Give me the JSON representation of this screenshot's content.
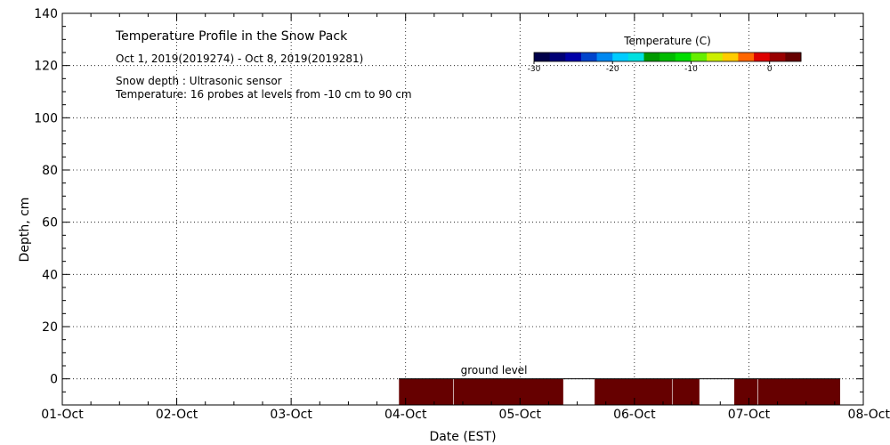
{
  "chart_data": {
    "type": "heatmap",
    "title": "Temperature Profile in the Snow Pack",
    "subtitle": "Oct  1, 2019(2019274) - Oct  8, 2019(2019281)",
    "annotations": [
      "Snow depth : Ultrasonic sensor",
      "Temperature: 16 probes at levels from -10 cm to 90 cm"
    ],
    "ground_label": "ground level",
    "xlabel": "Date (EST)",
    "ylabel": "Depth, cm",
    "x_ticks": [
      "01-Oct",
      "02-Oct",
      "03-Oct",
      "04-Oct",
      "05-Oct",
      "06-Oct",
      "07-Oct",
      "08-Oct"
    ],
    "xlim": [
      0,
      7
    ],
    "ylim": [
      -10,
      140
    ],
    "y_ticks": [
      0,
      20,
      40,
      60,
      80,
      100,
      120,
      140
    ],
    "grid": true,
    "colorbar": {
      "title": "Temperature (C)",
      "ticks": [
        -30,
        -20,
        -10,
        0
      ],
      "range": [
        -30,
        4
      ],
      "colors": [
        "#00004a",
        "#000075",
        "#0000a8",
        "#0044cc",
        "#0088f0",
        "#00ccff",
        "#00e0e0",
        "#009900",
        "#00bb00",
        "#00dd00",
        "#66ee00",
        "#ccee00",
        "#ffcc00",
        "#ff6600",
        "#dd0000",
        "#990000",
        "#660000"
      ]
    },
    "temperature_blocks": [
      {
        "start": 2.94,
        "end": 3.42,
        "temp_c": 3
      },
      {
        "start": 3.42,
        "end": 4.38,
        "temp_c": 3
      },
      {
        "start": 4.65,
        "end": 5.33,
        "temp_c": 3
      },
      {
        "start": 5.33,
        "end": 5.57,
        "temp_c": 3
      },
      {
        "start": 5.87,
        "end": 6.08,
        "temp_c": 3
      },
      {
        "start": 6.08,
        "end": 6.8,
        "temp_c": 3
      }
    ],
    "depth_range": [
      -10,
      0
    ]
  }
}
